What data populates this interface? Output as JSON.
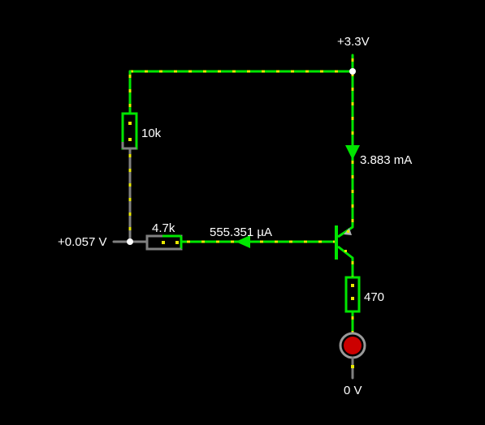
{
  "supply": {
    "label": "+3.3V"
  },
  "ground": {
    "label": "0 V"
  },
  "node_voltage": {
    "label": "+0.057 V"
  },
  "resistors": {
    "r_top": {
      "label": "10k"
    },
    "r_base": {
      "label": "4.7k"
    },
    "r_emitter": {
      "label": "470"
    }
  },
  "currents": {
    "collector": {
      "label": "3.883 mA"
    },
    "base": {
      "label": "555.351 µA"
    }
  },
  "colors": {
    "wire_active": "#00e600",
    "current_dots": "#e8e800",
    "wire_idle": "#808080",
    "led": "#cc0000",
    "node": "#ffffff"
  }
}
